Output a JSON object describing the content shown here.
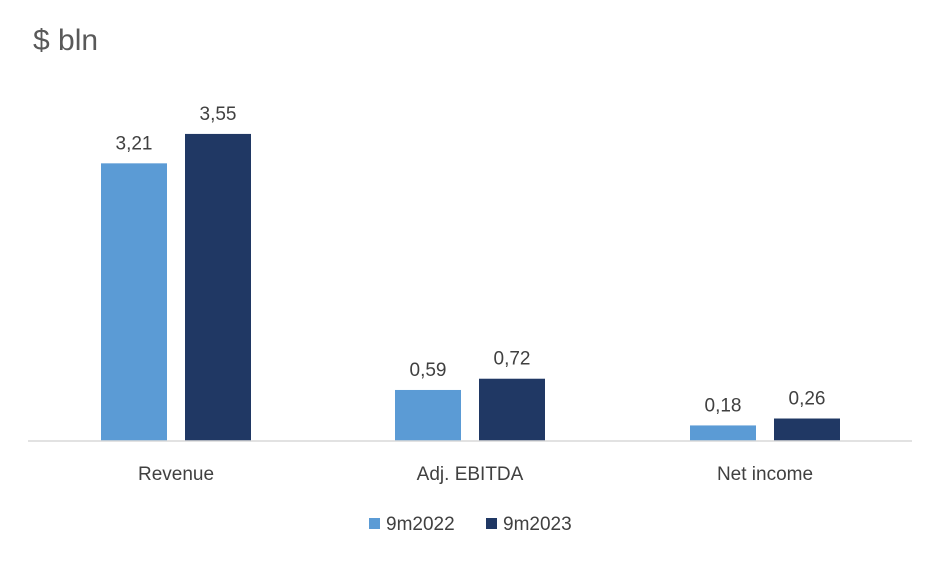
{
  "chart_data": {
    "type": "bar",
    "title": "$ bln",
    "categories": [
      "Revenue",
      "Adj. EBITDA",
      "Net income"
    ],
    "series": [
      {
        "name": "9m2022",
        "values": [
          3.21,
          0.59,
          0.18
        ],
        "labels": [
          "3,21",
          "0,59",
          "0,18"
        ],
        "color": "#5b9bd5"
      },
      {
        "name": "9m2023",
        "values": [
          3.55,
          0.72,
          0.26
        ],
        "labels": [
          "3,55",
          "0,72",
          "0,26"
        ],
        "color": "#203864"
      }
    ],
    "ylim": [
      0,
      4.0
    ],
    "grid": false,
    "legend": "bottom"
  }
}
